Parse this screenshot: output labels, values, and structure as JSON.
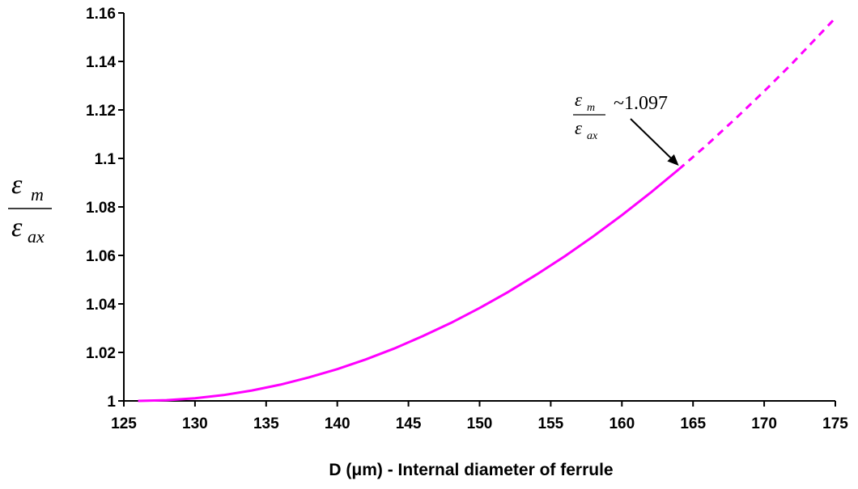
{
  "chart_data": {
    "type": "line",
    "x": [
      126,
      128,
      130,
      132,
      134,
      136,
      138,
      140,
      142,
      144,
      146,
      148,
      150,
      152,
      154,
      156,
      158,
      160,
      162,
      164,
      166,
      168,
      170,
      172,
      175
    ],
    "series": [
      {
        "color": "#ff00ff",
        "y": [
          1.0,
          1.0003,
          1.0011,
          1.0024,
          1.0043,
          1.0067,
          1.0097,
          1.0131,
          1.0171,
          1.0216,
          1.0267,
          1.0322,
          1.0383,
          1.0449,
          1.0521,
          1.0597,
          1.0679,
          1.0766,
          1.0858,
          1.0955,
          1.1057,
          1.1165,
          1.1277,
          1.1394,
          1.1579
        ],
        "solid_until_x": 164
      }
    ],
    "xlabel": "D (μm) - Internal diameter of ferrule",
    "ylabel": {
      "numerator_symbol": "ε",
      "numerator_subscript": "m",
      "denominator_symbol": "ε",
      "denominator_subscript": "ax"
    },
    "xlim": [
      125,
      175
    ],
    "ylim": [
      1,
      1.16
    ],
    "xticks": [
      "125",
      "130",
      "135",
      "140",
      "145",
      "150",
      "155",
      "160",
      "165",
      "170",
      "175"
    ],
    "yticks": [
      "1",
      "1.02",
      "1.04",
      "1.06",
      "1.08",
      "1.1",
      "1.12",
      "1.14",
      "1.16"
    ],
    "grid": false,
    "annotation": {
      "numerator_symbol": "ε",
      "numerator_subscript": "m",
      "denominator_symbol": "ε",
      "denominator_subscript": "ax",
      "text": "~1.097",
      "point_x": 164,
      "point_y": 1.097
    }
  }
}
